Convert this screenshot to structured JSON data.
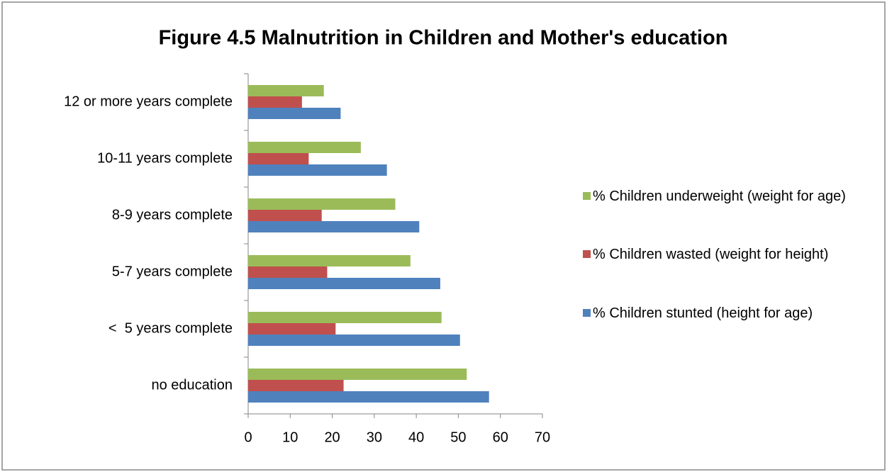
{
  "chart_data": {
    "type": "barh",
    "title": "Figure 4.5 Malnutrition in Children and Mother's education",
    "categories": [
      "no education",
      "<  5 years complete",
      "5-7 years complete",
      "8-9 years complete",
      "10-11 years complete",
      "12 or more years complete"
    ],
    "series": [
      {
        "name": "% Children underweight (weight for age)",
        "color": "#9bbb59",
        "values": [
          52,
          46,
          38.6,
          35,
          26.8,
          18
        ]
      },
      {
        "name": "% Children wasted (weight for height)",
        "color": "#c0504d",
        "values": [
          22.7,
          20.8,
          18.8,
          17.5,
          14.4,
          12.8
        ]
      },
      {
        "name": "% Children stunted (height for age)",
        "color": "#4f81bd",
        "values": [
          57.3,
          50.4,
          45.7,
          40.7,
          33,
          22
        ]
      }
    ],
    "xlim": [
      0,
      70
    ],
    "xticks": [
      0,
      10,
      20,
      30,
      40,
      50,
      60,
      70
    ],
    "legend": "right"
  }
}
